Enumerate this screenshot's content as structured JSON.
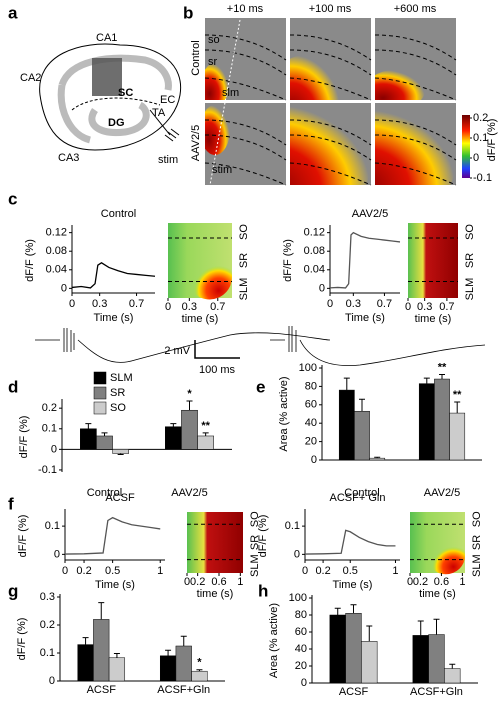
{
  "panel_labels": [
    "a",
    "b",
    "c",
    "d",
    "e",
    "f",
    "g",
    "h"
  ],
  "diagram": {
    "labels": [
      "CA1",
      "CA2",
      "SC",
      "EC",
      "TA",
      "DG",
      "CA3",
      "stim"
    ]
  },
  "imaging": {
    "times": [
      "+10 ms",
      "+100 ms",
      "+600 ms"
    ],
    "rows": [
      "Control",
      "AAV2/5"
    ],
    "layers": [
      "so",
      "sr",
      "slm",
      "stim"
    ],
    "colorbar": {
      "title": "dF/F (%)",
      "ticks": [
        0.2,
        0.1,
        0,
        -0.1
      ]
    }
  },
  "ephys_scale": [
    "2 mV",
    "100 ms"
  ],
  "heatmaps": [
    {
      "xticks": [
        0,
        0.3,
        0.7
      ],
      "xlim": [
        0,
        0.9
      ],
      "xlabel": "time (s)",
      "layers": [
        "SO",
        "SR",
        "SLM"
      ]
    },
    {
      "xticks": [
        0,
        0.3,
        0.7
      ],
      "xlim": [
        0,
        0.9
      ],
      "xlabel": "time (s)",
      "layers": [
        "SO",
        "SR",
        "SLM"
      ]
    },
    {
      "xticks": [
        0,
        0.2,
        0.6,
        1
      ],
      "xlim": [
        0,
        1.05
      ],
      "xlabel": "time (s)",
      "layers": [
        "SO",
        "SR",
        "SLM"
      ]
    },
    {
      "xticks": [
        0,
        0.2,
        0.6,
        1
      ],
      "xlim": [
        0,
        1.05
      ],
      "xlabel": "time (s)",
      "layers": [
        "SO",
        "SR",
        "SLM"
      ]
    }
  ],
  "chart_data": [
    {
      "type": "line",
      "title": "Control",
      "xlabel": "Time (s)",
      "ylabel": "dF/F (%)",
      "color": "#000000",
      "x": [
        0,
        0.1,
        0.2,
        0.25,
        0.28,
        0.32,
        0.4,
        0.5,
        0.6,
        0.7,
        0.8,
        0.9
      ],
      "values": [
        0.002,
        0.004,
        0.001,
        0.01,
        0.05,
        0.055,
        0.045,
        0.038,
        0.032,
        0.03,
        0.028,
        0.026
      ],
      "xlim": [
        0,
        0.9
      ],
      "ylim": [
        -0.01,
        0.13
      ],
      "xticks": [
        0,
        0.3,
        0.7
      ],
      "yticks": [
        0,
        0.04,
        0.08,
        0.12
      ]
    },
    {
      "type": "line",
      "title": "AAV2/5",
      "xlabel": "Time (s)",
      "ylabel": "dF/F (%)",
      "color": "#555555",
      "x": [
        0,
        0.1,
        0.2,
        0.24,
        0.27,
        0.3,
        0.4,
        0.5,
        0.6,
        0.7,
        0.8,
        0.9
      ],
      "values": [
        0.001,
        0.002,
        0.001,
        0.01,
        0.115,
        0.12,
        0.112,
        0.108,
        0.106,
        0.104,
        0.102,
        0.1
      ],
      "xlim": [
        0,
        0.9
      ],
      "ylim": [
        -0.01,
        0.13
      ],
      "xticks": [
        0,
        0.3,
        0.7
      ],
      "yticks": [
        0,
        0.04,
        0.08,
        0.12
      ]
    },
    {
      "type": "bar",
      "ylabel": "dF/F (%)",
      "categories": [
        "Control",
        "AAV2/5"
      ],
      "legend": true,
      "series": [
        {
          "name": "SLM",
          "color": "#000000",
          "values": [
            0.1,
            0.11
          ],
          "errors": [
            0.025,
            0.015
          ]
        },
        {
          "name": "SR",
          "color": "#808080",
          "values": [
            0.065,
            0.19
          ],
          "errors": [
            0.015,
            0.045
          ]
        },
        {
          "name": "SO",
          "color": "#cccccc",
          "values": [
            -0.02,
            0.065
          ],
          "errors": [
            0.005,
            0.015
          ]
        }
      ],
      "ylim": [
        -0.11,
        0.23
      ],
      "yticks": [
        -0.1,
        0,
        0.1,
        0.2
      ],
      "annotations": [
        "*",
        "**"
      ]
    },
    {
      "type": "bar",
      "ylabel": "Area (% active)",
      "categories": [
        "Control",
        "AAV2/5"
      ],
      "series": [
        {
          "color": "#000000",
          "values": [
            76,
            83
          ],
          "errors": [
            13,
            6
          ]
        },
        {
          "color": "#808080",
          "values": [
            53,
            88
          ],
          "errors": [
            13,
            5
          ]
        },
        {
          "color": "#cccccc",
          "values": [
            2,
            51
          ],
          "errors": [
            1,
            12
          ]
        }
      ],
      "ylim": [
        0,
        100
      ],
      "yticks": [
        0,
        20,
        40,
        60,
        80,
        100
      ],
      "annotations": [
        "**",
        "**"
      ]
    },
    {
      "type": "line",
      "title": "ACSF",
      "xlabel": "Time (s)",
      "ylabel": "dF/F (%)",
      "color": "#555555",
      "x": [
        0,
        0.2,
        0.4,
        0.45,
        0.5,
        0.6,
        0.7,
        0.8,
        0.9,
        1
      ],
      "values": [
        0.001,
        0.002,
        0.005,
        0.12,
        0.13,
        0.115,
        0.105,
        0.1,
        0.095,
        0.09
      ],
      "xlim": [
        0,
        1.05
      ],
      "ylim": [
        -0.02,
        0.15
      ],
      "xticks": [
        0,
        0.2,
        0.5,
        1
      ],
      "yticks": [
        0,
        0.1
      ]
    },
    {
      "type": "line",
      "title": "ACSF+ Gln",
      "xlabel": "Time (s)",
      "ylabel": "dF/F (%)",
      "color": "#555555",
      "x": [
        0,
        0.2,
        0.4,
        0.45,
        0.5,
        0.6,
        0.7,
        0.8,
        0.9,
        1
      ],
      "values": [
        0.001,
        0.002,
        0.004,
        0.085,
        0.08,
        0.06,
        0.045,
        0.035,
        0.03,
        0.03
      ],
      "xlim": [
        0,
        1.05
      ],
      "ylim": [
        -0.02,
        0.15
      ],
      "xticks": [
        0,
        0.2,
        0.5,
        1
      ],
      "yticks": [
        0,
        0.1
      ]
    },
    {
      "type": "bar",
      "ylabel": "dF/F (%)",
      "categories": [
        "ACSF",
        "ACSF+Gln"
      ],
      "series": [
        {
          "color": "#000000",
          "values": [
            0.13,
            0.09
          ],
          "errors": [
            0.025,
            0.02
          ]
        },
        {
          "color": "#808080",
          "values": [
            0.22,
            0.125
          ],
          "errors": [
            0.06,
            0.035
          ]
        },
        {
          "color": "#cccccc",
          "values": [
            0.083,
            0.035
          ],
          "errors": [
            0.015,
            0.005
          ]
        }
      ],
      "ylim": [
        0,
        0.3
      ],
      "yticks": [
        0,
        0.1,
        0.2,
        0.3
      ],
      "annotations": [
        "*"
      ]
    },
    {
      "type": "bar",
      "ylabel": "Area (% active)",
      "categories": [
        "ACSF",
        "ACSF+Gln"
      ],
      "series": [
        {
          "color": "#000000",
          "values": [
            80,
            56
          ],
          "errors": [
            8,
            17
          ]
        },
        {
          "color": "#808080",
          "values": [
            82,
            57
          ],
          "errors": [
            10,
            18
          ]
        },
        {
          "color": "#cccccc",
          "values": [
            49,
            17
          ],
          "errors": [
            18,
            5
          ]
        }
      ],
      "ylim": [
        0,
        100
      ],
      "yticks": [
        0,
        20,
        40,
        60,
        80,
        100
      ]
    }
  ]
}
